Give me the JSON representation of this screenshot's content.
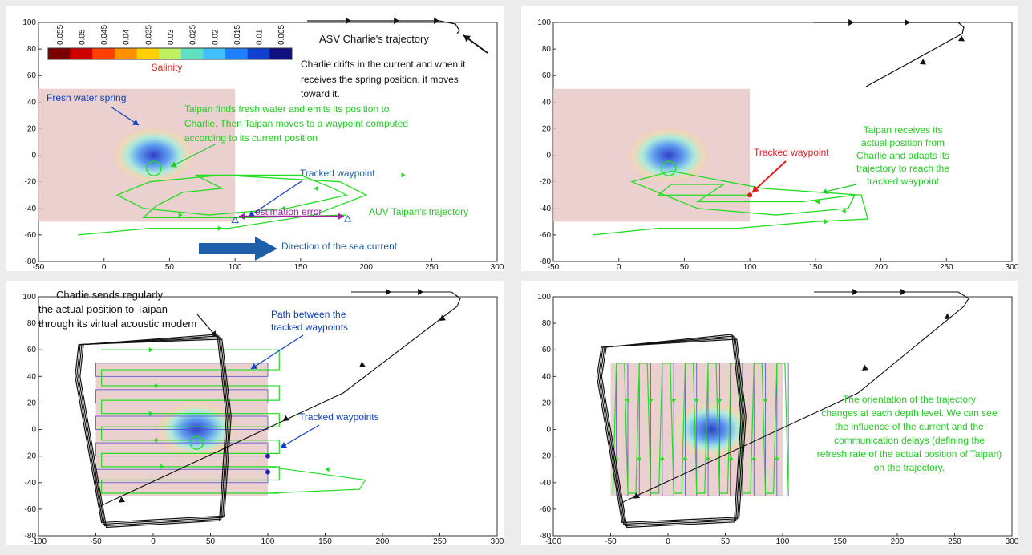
{
  "colors": {
    "auv": "#22dd22",
    "asv": "#111111",
    "annotation_green": "#22cc22",
    "annotation_blue": "#1040c0",
    "annotation_red": "#e02020",
    "annotation_purple": "#a020a0",
    "current_arrow": "#1f5ea8",
    "spring_region": "#e8c8c8"
  },
  "chart_data": [
    {
      "type": "line",
      "panel": "top-left",
      "xlim": [
        -50,
        300
      ],
      "ylim": [
        -80,
        100
      ],
      "xticks": [
        "-50",
        "0",
        "50",
        "100",
        "150",
        "200",
        "250",
        "300"
      ],
      "yticks": [
        "100",
        "80",
        "60",
        "40",
        "20",
        "0",
        "-20",
        "-40",
        "-60",
        "-80"
      ],
      "colorbar": {
        "label": "Salinity",
        "ticks": [
          "0.055",
          "0.05",
          "0.045",
          "0.04",
          "0.035",
          "0.03",
          "0.025",
          "0.02",
          "0.015",
          "0.01",
          "0.005"
        ]
      },
      "annotations": [
        {
          "text": "ASV Charlie's trajectory",
          "color": "#111111"
        },
        {
          "text": "Charlie drifts in the current and when it",
          "color": "#111111"
        },
        {
          "text": "receives the spring position, it moves",
          "color": "#111111"
        },
        {
          "text": "toward it.",
          "color": "#111111"
        },
        {
          "text": "Fresh water spring",
          "color": "#1040c0"
        },
        {
          "text": "Taipan finds fresh water and emits its position to",
          "color": "#22cc22"
        },
        {
          "text": "Charlie. Then Taipan moves to a waypoint computed",
          "color": "#22cc22"
        },
        {
          "text": "according to its current position",
          "color": "#22cc22"
        },
        {
          "text": "Tracked waypoint",
          "color": "#1f5ea8"
        },
        {
          "text": "estimation error",
          "color": "#a020a0"
        },
        {
          "text": "AUV Taipan's trajectory",
          "color": "#22cc22"
        },
        {
          "text": "Direction of the sea current",
          "color": "#1f5ea8"
        }
      ],
      "series": [
        {
          "x": [
            185,
            115,
            30,
            40,
            60,
            90,
            70,
            150,
            175,
            185,
            140,
            80,
            30,
            10,
            35,
            90,
            180,
            200,
            160,
            95,
            35,
            -20
          ],
          "y": [
            -45,
            -47,
            -47,
            -38,
            -28,
            -25,
            -15,
            -15,
            -25,
            -30,
            -40,
            -45,
            -40,
            -30,
            -20,
            -15,
            -20,
            -30,
            -45,
            -55,
            -55,
            -60
          ]
        },
        {
          "x": [
            160,
            175,
            187,
            170,
            145,
            120
          ],
          "y": [
            96,
            96,
            96,
            96,
            88,
            78
          ]
        },
        {
          "x": [
            100,
            186
          ],
          "y": [
            -49,
            -48
          ]
        }
      ]
    },
    {
      "type": "line",
      "panel": "top-right",
      "xlim": [
        -50,
        300
      ],
      "ylim": [
        -80,
        100
      ],
      "xticks": [
        "-50",
        "0",
        "50",
        "100",
        "150",
        "200",
        "250",
        "300"
      ],
      "yticks": [
        "100",
        "80",
        "60",
        "40",
        "20",
        "0",
        "-20",
        "-40",
        "-60",
        "-80"
      ],
      "annotations": [
        {
          "text": "Tracked waypoint",
          "color": "#e02020"
        },
        {
          "text": "Taipan receives its",
          "color": "#22cc22"
        },
        {
          "text": "actual position from",
          "color": "#22cc22"
        },
        {
          "text": "Charlie and adapts its",
          "color": "#22cc22"
        },
        {
          "text": "trajectory to reach the",
          "color": "#22cc22"
        },
        {
          "text": "tracked waypoint",
          "color": "#22cc22"
        }
      ],
      "series": [
        {
          "x": [
            100,
            30,
            40,
            80,
            60,
            140,
            180,
            175,
            120,
            60,
            35,
            10,
            40,
            110,
            185,
            190,
            150,
            90,
            30,
            -20
          ],
          "y": [
            -30,
            -30,
            -22,
            -22,
            -35,
            -35,
            -30,
            -40,
            -45,
            -40,
            -30,
            -20,
            -12,
            -25,
            -30,
            -48,
            -50,
            -55,
            -55,
            -60
          ]
        },
        {
          "x": [
            150,
            180,
            245,
            255,
            252,
            210,
            175
          ],
          "y": [
            96,
            96,
            96,
            88,
            80,
            62,
            52
          ]
        }
      ]
    },
    {
      "type": "line",
      "panel": "bottom-left",
      "xlim": [
        -100,
        300
      ],
      "ylim": [
        -80,
        100
      ],
      "xticks": [
        "-100",
        "-50",
        "0",
        "50",
        "100",
        "150",
        "200",
        "250",
        "300"
      ],
      "yticks": [
        "100",
        "80",
        "60",
        "40",
        "20",
        "0",
        "-20",
        "-40",
        "-60",
        "-80"
      ],
      "annotations": [
        {
          "text": "Charlie sends regularly",
          "color": "#111111"
        },
        {
          "text": "the actual position to Taipan",
          "color": "#111111"
        },
        {
          "text": "through its virtual acoustic modem",
          "color": "#111111"
        },
        {
          "text": "Path between the",
          "color": "#1040c0"
        },
        {
          "text": "tracked waypoints",
          "color": "#1040c0"
        },
        {
          "text": "Tracked waypoints",
          "color": "#1040c0"
        }
      ],
      "series": [
        {
          "x": [
            -50,
            100,
            -50,
            100,
            -50,
            100,
            -50,
            100,
            -50,
            100
          ],
          "y": [
            60,
            45,
            40,
            30,
            20,
            10,
            0,
            -10,
            -20,
            -35
          ]
        },
        {
          "x": [
            -65,
            -30,
            65,
            70,
            60,
            -50,
            -65
          ],
          "y": [
            65,
            68,
            68,
            0,
            -68,
            -70,
            65
          ]
        },
        {
          "x": [
            180,
            215,
            245,
            255,
            250,
            200,
            120,
            40,
            -60
          ],
          "y": [
            96,
            96,
            96,
            88,
            80,
            45,
            0,
            -30,
            -58
          ]
        }
      ]
    },
    {
      "type": "line",
      "panel": "bottom-right",
      "xlim": [
        -100,
        300
      ],
      "ylim": [
        -80,
        100
      ],
      "xticks": [
        "-100",
        "-50",
        "0",
        "50",
        "100",
        "150",
        "200",
        "250",
        "300"
      ],
      "yticks": [
        "100",
        "80",
        "60",
        "40",
        "20",
        "0",
        "-20",
        "-40",
        "-60",
        "-80"
      ],
      "annotations": [
        {
          "text": "The orientation of the trajectory",
          "color": "#22cc22"
        },
        {
          "text": "changes at each depth level. We can see",
          "color": "#22cc22"
        },
        {
          "text": "the influence of the current and the",
          "color": "#22cc22"
        },
        {
          "text": "communication delays (defining the",
          "color": "#22cc22"
        },
        {
          "text": "refresh rate of the actual position of Taipan)",
          "color": "#22cc22"
        },
        {
          "text": "on the trajectory.",
          "color": "#22cc22"
        }
      ],
      "series": [
        {
          "x": [
            -48,
            -30,
            -20,
            -10,
            0,
            10,
            20,
            30,
            40,
            50,
            60,
            70,
            80,
            90,
            100
          ],
          "y": [
            -50,
            50,
            -50,
            50,
            -50,
            50,
            -50,
            50,
            -50,
            50,
            -50,
            50,
            -50,
            50,
            -50
          ]
        },
        {
          "x": [
            -60,
            -40,
            65,
            70,
            60,
            -50,
            -60
          ],
          "y": [
            65,
            68,
            68,
            0,
            -68,
            -70,
            65
          ]
        },
        {
          "x": [
            150,
            190,
            245,
            255,
            250,
            200,
            120,
            40,
            -45
          ],
          "y": [
            96,
            96,
            96,
            88,
            80,
            45,
            0,
            -30,
            -55
          ]
        }
      ]
    }
  ]
}
